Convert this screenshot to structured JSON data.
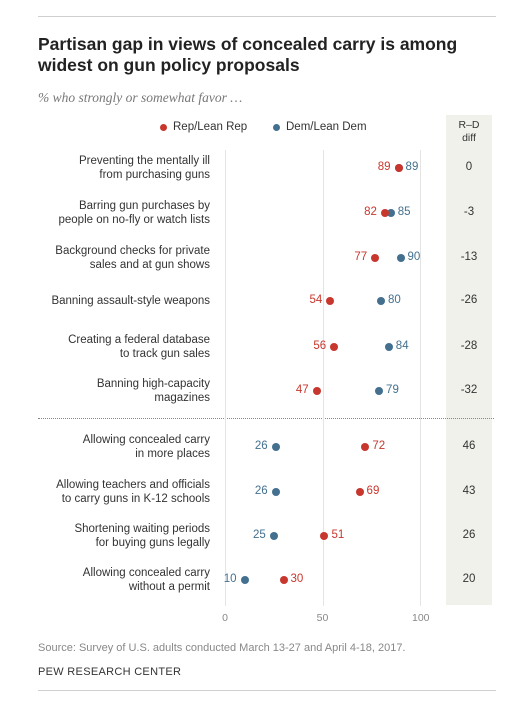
{
  "title": "Partisan gap in views of concealed carry is among widest on gun policy proposals",
  "subtitle": "% who strongly or somewhat favor …",
  "legend": {
    "rep": "Rep/Lean Rep",
    "dem": "Dem/Lean Dem"
  },
  "diff_header_line1": "R–D",
  "diff_header_line2": "diff",
  "source": "Source: Survey of U.S. adults conducted March 13-27 and April 4-18, 2017.",
  "organization": "PEW RESEARCH CENTER",
  "colors": {
    "rep": "#c8372d",
    "dem": "#43708f",
    "line": "#cccccc"
  },
  "chart_data": {
    "type": "dot-plot",
    "xlim": [
      0,
      100
    ],
    "x_ticks": [
      "0",
      "50",
      "100"
    ],
    "series": [
      {
        "name": "Rep/Lean Rep",
        "color": "#c8372d"
      },
      {
        "name": "Dem/Lean Dem",
        "color": "#43708f"
      }
    ],
    "rows": [
      {
        "label": [
          "Preventing the mentally ill",
          "from purchasing guns"
        ],
        "rep": 89,
        "dem": 89,
        "diff": "0"
      },
      {
        "label": [
          "Barring gun purchases by",
          "people on no-fly or watch lists"
        ],
        "rep": 82,
        "dem": 85,
        "diff": "-3"
      },
      {
        "label": [
          "Background checks for private",
          "sales and at gun shows"
        ],
        "rep": 77,
        "dem": 90,
        "diff": "-13"
      },
      {
        "label": [
          "Banning assault-style weapons"
        ],
        "rep": 54,
        "dem": 80,
        "diff": "-26"
      },
      {
        "label": [
          "Creating a federal database",
          "to track gun sales"
        ],
        "rep": 56,
        "dem": 84,
        "diff": "-28"
      },
      {
        "label": [
          "Banning high-capacity",
          "magazines"
        ],
        "rep": 47,
        "dem": 79,
        "diff": "-32"
      },
      {
        "label": [
          "Allowing concealed carry",
          "in more places"
        ],
        "rep": 72,
        "dem": 26,
        "diff": "46"
      },
      {
        "label": [
          "Allowing teachers and officials",
          "to carry guns in K-12 schools"
        ],
        "rep": 69,
        "dem": 26,
        "diff": "43"
      },
      {
        "label": [
          "Shortening waiting periods",
          "for buying guns legally"
        ],
        "rep": 51,
        "dem": 25,
        "diff": "26"
      },
      {
        "label": [
          "Allowing concealed carry",
          "without a permit"
        ],
        "rep": 30,
        "dem": 10,
        "diff": "20"
      }
    ]
  }
}
